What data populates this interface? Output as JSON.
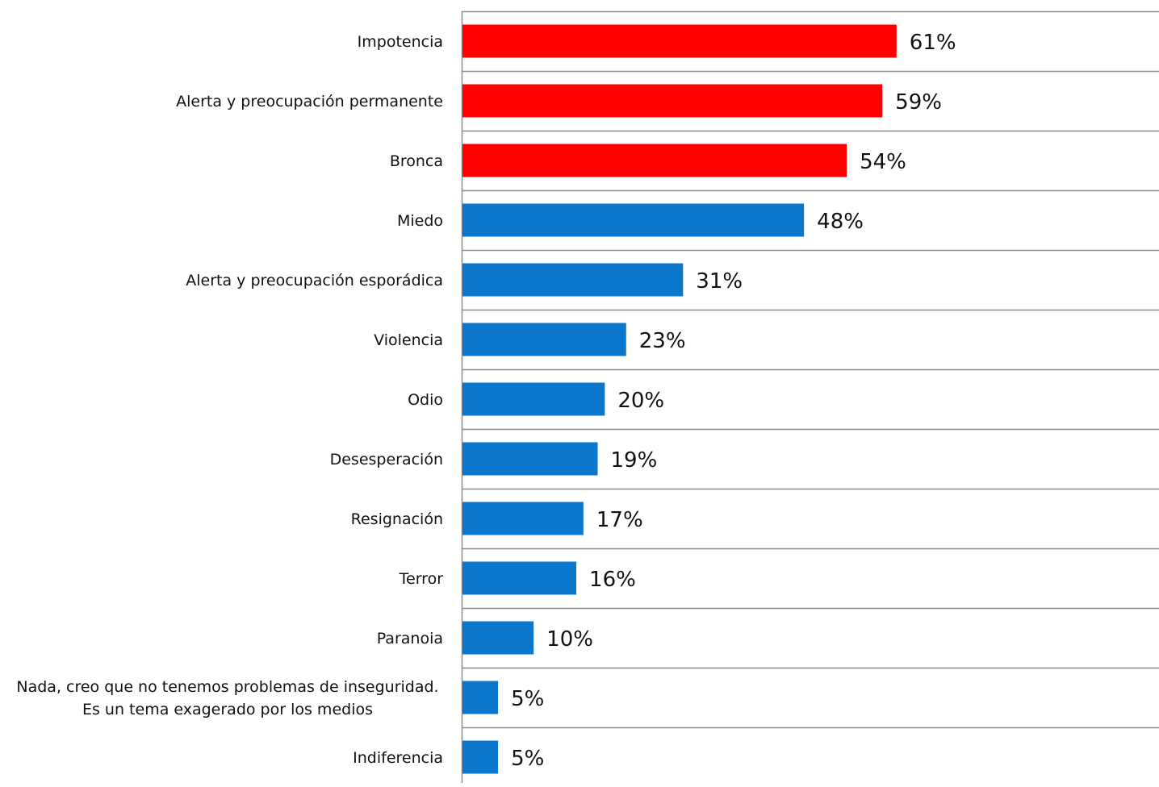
{
  "chart_data": {
    "type": "bar",
    "orientation": "horizontal",
    "categories": [
      "Impotencia",
      "Alerta y preocupación permanente",
      "Bronca",
      "Miedo",
      "Alerta y preocupación esporádica",
      "Violencia",
      "Odio",
      "Desesperación",
      "Resignación",
      "Terror",
      "Paranoia",
      "Nada, creo que no tenemos problemas de inseguridad.\nEs un tema exagerado por los medios",
      "Indiferencia"
    ],
    "values": [
      61,
      59,
      54,
      48,
      31,
      23,
      20,
      19,
      17,
      16,
      10,
      5,
      5
    ],
    "value_labels": [
      "61%",
      "59%",
      "54%",
      "48%",
      "31%",
      "23%",
      "20%",
      "19%",
      "17%",
      "16%",
      "10%",
      "5%",
      "5%"
    ],
    "bar_colors": [
      "#ff0000",
      "#ff0000",
      "#ff0000",
      "#0a77cc",
      "#0a77cc",
      "#0a77cc",
      "#0a77cc",
      "#0a77cc",
      "#0a77cc",
      "#0a77cc",
      "#0a77cc",
      "#0a77cc",
      "#0a77cc"
    ],
    "title": "",
    "xlabel": "",
    "ylabel": "",
    "xlim": [
      0,
      98
    ],
    "grid": true,
    "legend": "none"
  }
}
